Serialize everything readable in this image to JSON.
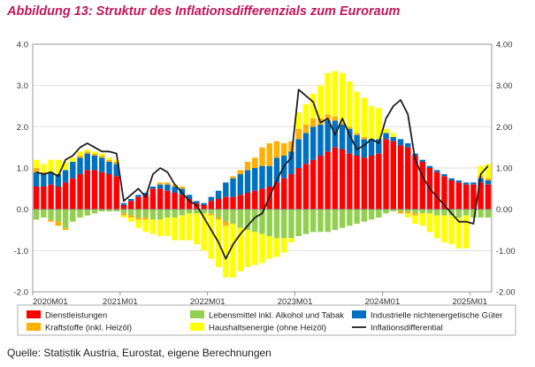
{
  "title": "Abbildung 13: Struktur des Inflationsdifferenzials zum Euroraum",
  "source": "Quelle: Statistik Austria, Eurostat, eigene Berechnungen",
  "colors": {
    "Dienstleistungen": "#ff0000",
    "Lebensmittel": "#92d050",
    "Industriegueter": "#0070c0",
    "Kraftstoffe": "#ffb000",
    "Haushaltsenergie": "#ffff00",
    "Inflationsdifferential": "#1f1f1f",
    "Title": "#c0155a"
  },
  "chart_data": {
    "type": "bar",
    "stacked": true,
    "title": "Abbildung 13: Struktur des Inflationsdifferenzials zum Euroraum",
    "ylim": [
      -2.0,
      4.0
    ],
    "yticks_left": [
      "4.0",
      "3.0",
      "2.0",
      "1.0",
      "0.0",
      "-1.0",
      "-2.0"
    ],
    "yticks_right": [
      "4.00",
      "3.00",
      "2.00",
      "1.00",
      "0.00",
      "-1.00",
      "-2.00"
    ],
    "x_tick_labels": [
      "2020M01",
      "2021M01",
      "2022M01",
      "2023M01",
      "2024M01",
      "2025M01"
    ],
    "x_start": "2020M01",
    "n_months": 63,
    "legend": [
      "Dienstleistungen",
      "Lebensmittel inkl. Alkohol und Tabak",
      "Industrielle nichtenergetische Güter",
      "Kraftstoffe (inkl. Heizöl)",
      "Haushaltsenergie (ohne Heizöl)",
      "Inflationsdifferential"
    ],
    "series": [
      {
        "name": "Dienstleistungen",
        "key": "Dienstleistungen",
        "values": [
          0.55,
          0.55,
          0.6,
          0.55,
          0.65,
          0.75,
          0.85,
          0.95,
          0.95,
          0.9,
          0.85,
          0.8,
          0.1,
          0.2,
          0.3,
          0.35,
          0.5,
          0.5,
          0.45,
          0.4,
          0.35,
          0.25,
          0.15,
          0.1,
          0.2,
          0.25,
          0.3,
          0.3,
          0.35,
          0.4,
          0.45,
          0.5,
          0.55,
          0.65,
          0.75,
          0.85,
          1.0,
          1.1,
          1.2,
          1.3,
          1.4,
          1.5,
          1.45,
          1.35,
          1.3,
          1.25,
          1.3,
          1.35,
          1.7,
          1.65,
          1.55,
          1.5,
          1.3,
          1.15,
          1.0,
          0.9,
          0.8,
          0.7,
          0.65,
          0.6,
          0.6,
          0.65,
          0.6
        ]
      },
      {
        "name": "Lebensmittel inkl. Alkohol und Tabak",
        "key": "Lebensmittel",
        "values": [
          -0.25,
          -0.2,
          -0.25,
          -0.3,
          -0.45,
          -0.3,
          -0.2,
          -0.15,
          -0.1,
          -0.05,
          -0.05,
          -0.05,
          -0.1,
          -0.15,
          -0.2,
          -0.2,
          -0.25,
          -0.25,
          -0.2,
          -0.2,
          -0.15,
          -0.1,
          -0.1,
          -0.1,
          -0.1,
          -0.2,
          -0.3,
          -0.35,
          -0.45,
          -0.5,
          -0.55,
          -0.6,
          -0.65,
          -0.7,
          -0.7,
          -0.7,
          -0.65,
          -0.6,
          -0.55,
          -0.55,
          -0.55,
          -0.5,
          -0.45,
          -0.4,
          -0.35,
          -0.3,
          -0.25,
          -0.2,
          -0.1,
          -0.05,
          -0.05,
          -0.05,
          -0.1,
          -0.1,
          -0.1,
          -0.15,
          -0.15,
          -0.15,
          -0.2,
          -0.15,
          -0.2,
          -0.2,
          -0.2
        ]
      },
      {
        "name": "Industrielle nichtenergetische Güter",
        "key": "Industriegueter",
        "values": [
          0.35,
          0.3,
          0.3,
          0.3,
          0.3,
          0.4,
          0.4,
          0.4,
          0.35,
          0.35,
          0.3,
          0.3,
          0.05,
          0.05,
          0.05,
          0.05,
          0.05,
          0.1,
          0.15,
          0.15,
          0.15,
          0.1,
          0.05,
          0.05,
          0.1,
          0.2,
          0.35,
          0.45,
          0.5,
          0.55,
          0.55,
          0.55,
          0.5,
          0.6,
          0.55,
          0.55,
          0.7,
          0.75,
          0.8,
          0.75,
          0.75,
          0.65,
          0.6,
          0.6,
          0.5,
          0.45,
          0.4,
          0.35,
          0.15,
          0.1,
          0.15,
          0.1,
          0.05,
          0.05,
          0.05,
          0.05,
          0.05,
          0.05,
          0.05,
          0.05,
          0.05,
          0.1,
          0.1
        ]
      },
      {
        "name": "Kraftstoffe (inkl. Heizöl)",
        "key": "Kraftstoffe",
        "values": [
          0.1,
          0.05,
          -0.05,
          -0.1,
          -0.05,
          0.0,
          0.05,
          0.05,
          0.05,
          0.05,
          0.05,
          0.05,
          -0.05,
          -0.05,
          -0.05,
          -0.05,
          0.0,
          0.05,
          0.05,
          0.05,
          0.05,
          0.0,
          0.0,
          0.0,
          -0.05,
          -0.05,
          -0.1,
          0.05,
          0.1,
          0.2,
          0.25,
          0.45,
          0.55,
          0.4,
          0.3,
          0.25,
          0.25,
          0.2,
          0.2,
          0.15,
          0.15,
          0.1,
          0.05,
          0.05,
          0.05,
          0.05,
          0.0,
          0.0,
          0.0,
          0.0,
          -0.05,
          -0.05,
          -0.05,
          0.0,
          0.0,
          0.0,
          0.0,
          0.0,
          0.0,
          0.0,
          0.0,
          0.05,
          0.05
        ]
      },
      {
        "name": "Haushaltsenergie (ohne Heizöl)",
        "key": "Haushaltsenergie",
        "values": [
          0.2,
          0.2,
          0.3,
          0.35,
          0.2,
          0.1,
          0.1,
          0.05,
          0.05,
          0.05,
          0.05,
          0.05,
          -0.05,
          -0.1,
          -0.2,
          -0.3,
          -0.35,
          -0.4,
          -0.45,
          -0.55,
          -0.6,
          -0.65,
          -0.75,
          -0.9,
          -1.05,
          -1.15,
          -1.25,
          -1.3,
          -1.05,
          -0.9,
          -0.8,
          -0.7,
          -0.55,
          -0.45,
          -0.35,
          -0.1,
          0.4,
          0.5,
          0.6,
          0.8,
          1.0,
          1.1,
          1.2,
          1.1,
          1.0,
          0.95,
          0.8,
          0.75,
          0.1,
          0.1,
          0.0,
          -0.1,
          -0.2,
          -0.3,
          -0.45,
          -0.55,
          -0.65,
          -0.7,
          -0.75,
          -0.8,
          0.0,
          0.25,
          0.35
        ]
      },
      {
        "name": "Inflationsdifferential",
        "key": "Inflationsdifferential",
        "type": "line",
        "values": [
          0.9,
          0.85,
          0.9,
          0.8,
          1.2,
          1.3,
          1.5,
          1.6,
          1.5,
          1.4,
          1.4,
          1.35,
          0.2,
          0.35,
          0.5,
          0.3,
          0.85,
          1.0,
          0.9,
          0.6,
          0.4,
          0.2,
          0.1,
          -0.2,
          -0.5,
          -0.8,
          -1.2,
          -0.85,
          -0.6,
          -0.4,
          -0.2,
          -0.1,
          0.3,
          0.7,
          1.05,
          1.25,
          2.9,
          2.75,
          2.6,
          2.1,
          2.2,
          1.8,
          2.2,
          1.8,
          1.45,
          1.55,
          1.7,
          1.6,
          2.2,
          2.5,
          2.65,
          2.3,
          1.2,
          0.8,
          0.5,
          0.3,
          0.1,
          -0.1,
          -0.3,
          -0.3,
          -0.35,
          0.85,
          1.05
        ]
      }
    ]
  }
}
